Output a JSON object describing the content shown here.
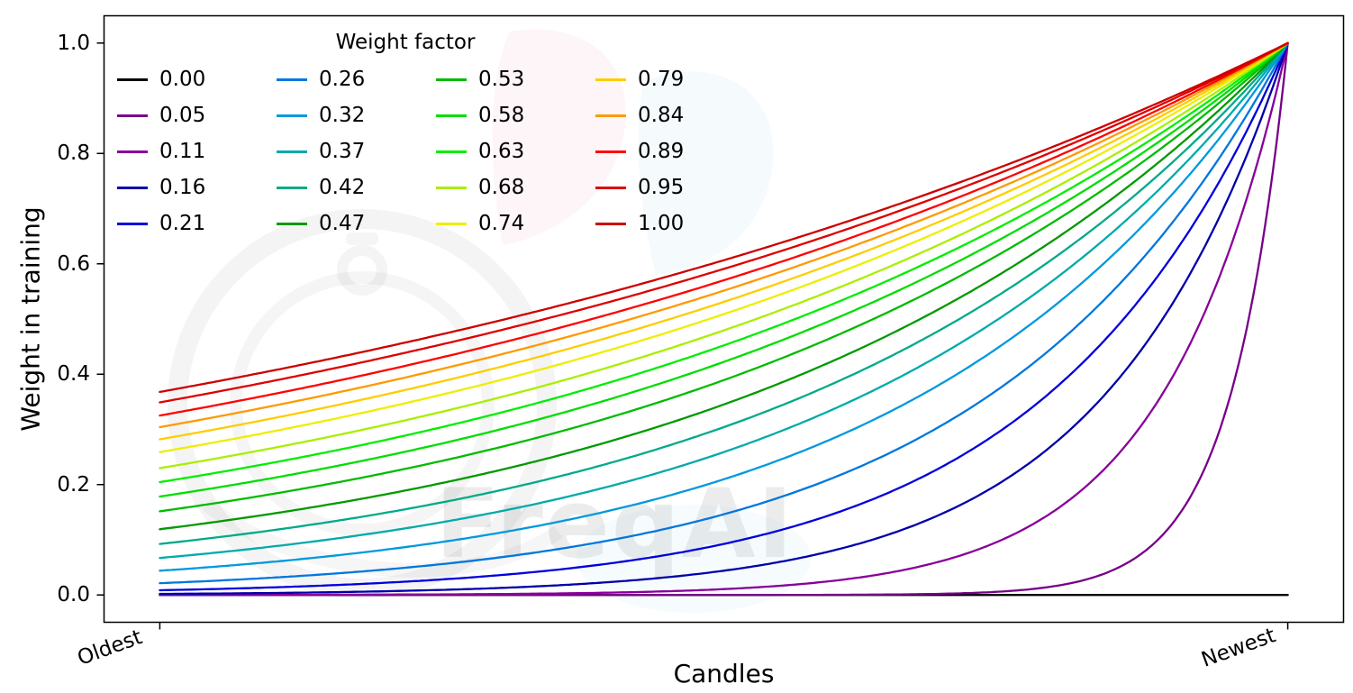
{
  "figure": {
    "ylabel": "Weight in training",
    "xlabel": "Candles",
    "watermark": "FreqAI"
  },
  "chart_data": {
    "type": "line",
    "title": "",
    "xlabel": "Candles",
    "ylabel": "Weight in training",
    "x_tick_labels": [
      "Oldest",
      "Newest"
    ],
    "y_tick_labels": [
      "0.0",
      "0.2",
      "0.4",
      "0.6",
      "0.8",
      "1.0"
    ],
    "ylim": [
      0,
      1
    ],
    "x_axis_note": "normalized candle age: 0 = oldest candle, 1 = newest candle",
    "curve_formula": "y = exp(-(1 - x) / factor); factor = 0 gives y = 0",
    "grid": false,
    "legend": {
      "title": "Weight factor",
      "columns": 4,
      "rows": 5,
      "frame": false,
      "location": "upper left"
    },
    "series": [
      {
        "name": "0.00",
        "factor": 0.0,
        "color": "#000000"
      },
      {
        "name": "0.05",
        "factor": 0.05,
        "color": "#770088"
      },
      {
        "name": "0.11",
        "factor": 0.11,
        "color": "#880099"
      },
      {
        "name": "0.16",
        "factor": 0.16,
        "color": "#0000aa"
      },
      {
        "name": "0.21",
        "factor": 0.21,
        "color": "#0000dd"
      },
      {
        "name": "0.26",
        "factor": 0.26,
        "color": "#0077dd"
      },
      {
        "name": "0.32",
        "factor": 0.32,
        "color": "#0099dd"
      },
      {
        "name": "0.37",
        "factor": 0.37,
        "color": "#00aaaa"
      },
      {
        "name": "0.42",
        "factor": 0.42,
        "color": "#00aa88"
      },
      {
        "name": "0.47",
        "factor": 0.47,
        "color": "#009900"
      },
      {
        "name": "0.53",
        "factor": 0.53,
        "color": "#00bb00"
      },
      {
        "name": "0.58",
        "factor": 0.58,
        "color": "#00dd00"
      },
      {
        "name": "0.63",
        "factor": 0.63,
        "color": "#00ee00"
      },
      {
        "name": "0.68",
        "factor": 0.68,
        "color": "#aaee00"
      },
      {
        "name": "0.74",
        "factor": 0.74,
        "color": "#eeee00"
      },
      {
        "name": "0.79",
        "factor": 0.79,
        "color": "#ffcc00"
      },
      {
        "name": "0.84",
        "factor": 0.84,
        "color": "#ff9900"
      },
      {
        "name": "0.89",
        "factor": 0.89,
        "color": "#ff0000"
      },
      {
        "name": "0.95",
        "factor": 0.95,
        "color": "#dd0000"
      },
      {
        "name": "1.00",
        "factor": 1.0,
        "color": "#cc0000"
      }
    ]
  }
}
